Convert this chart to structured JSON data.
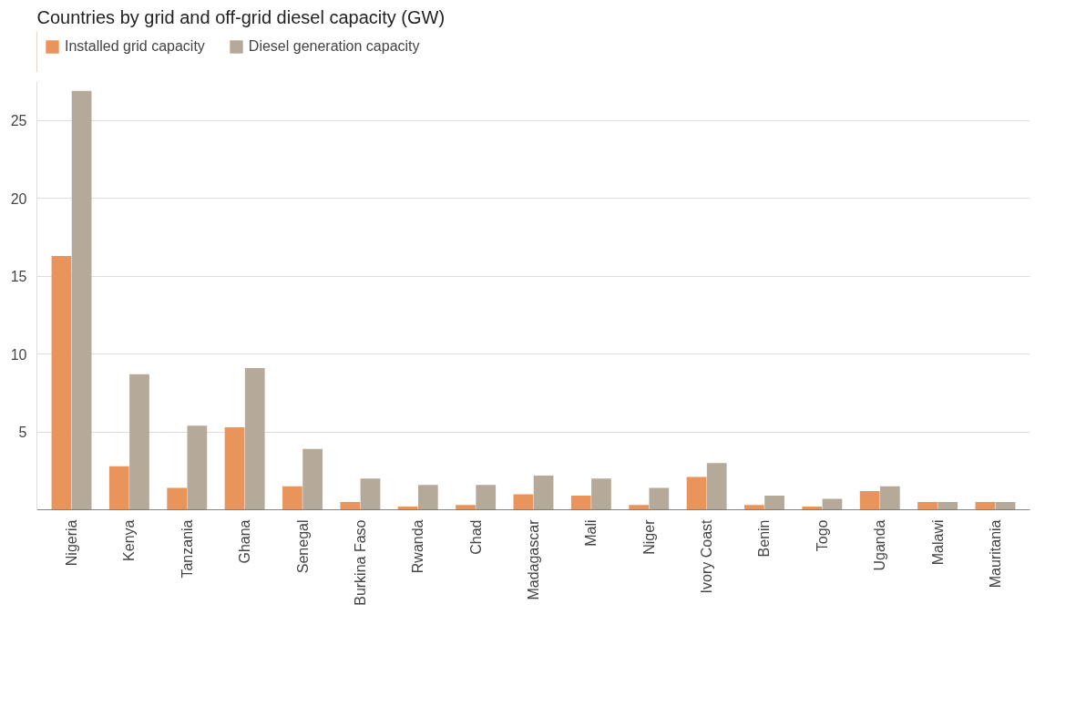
{
  "chart_data": {
    "type": "bar",
    "title": "Countries by grid and off-grid diesel capacity (GW)",
    "categories": [
      "Nigeria",
      "Kenya",
      "Tanzania",
      "Ghana",
      "Senegal",
      "Burkina Faso",
      "Rwanda",
      "Chad",
      "Madagascar",
      "Mali",
      "Niger",
      "Ivory Coast",
      "Benin",
      "Togo",
      "Uganda",
      "Malawi",
      "Mauritania"
    ],
    "series": [
      {
        "name": "Installed grid capacity",
        "color": "#e8945a",
        "values": [
          16.3,
          2.8,
          1.4,
          5.3,
          1.5,
          0.5,
          0.2,
          0.3,
          1.0,
          0.9,
          0.3,
          2.1,
          0.3,
          0.2,
          1.2,
          0.5,
          0.5
        ]
      },
      {
        "name": "Diesel generation capacity",
        "color": "#b5aa99",
        "values": [
          26.9,
          8.7,
          5.4,
          9.1,
          3.9,
          2.0,
          1.6,
          1.6,
          2.2,
          2.0,
          1.4,
          3.0,
          0.9,
          0.7,
          1.5,
          0.5,
          0.5
        ]
      }
    ],
    "ylim": [
      0,
      27.5
    ],
    "yticks": [
      5,
      10,
      15,
      20,
      25
    ],
    "grid": "y",
    "legend": "top left"
  }
}
